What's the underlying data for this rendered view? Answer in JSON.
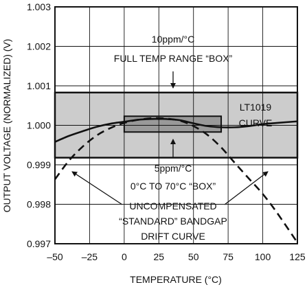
{
  "chart_data": {
    "type": "line",
    "xlabel": "TEMPERATURE (°C)",
    "ylabel": "OUTPUT VOLTAGE (NORMALIZED) (V)",
    "xlim": [
      -50,
      125
    ],
    "ylim": [
      0.997,
      1.003
    ],
    "x_ticks": [
      "–50",
      "–25",
      "0",
      "25",
      "50",
      "75",
      "100",
      "125"
    ],
    "y_ticks": [
      "0.997",
      "0.998",
      "0.999",
      "1.000",
      "1.001",
      "1.002",
      "1.003"
    ],
    "grid": true,
    "series": [
      {
        "name": "LT1019 CURVE",
        "style": "solid",
        "x": [
          -50,
          -40,
          -30,
          -20,
          -10,
          0,
          10,
          20,
          25,
          30,
          40,
          50,
          60,
          70,
          80,
          90,
          100,
          110,
          125
        ],
        "y": [
          0.99958,
          0.99973,
          0.99985,
          0.99996,
          1.00004,
          1.00009,
          1.00014,
          1.00016,
          1.00016,
          1.00016,
          1.00013,
          1.00005,
          0.99998,
          0.99995,
          0.99995,
          0.99998,
          1.00003,
          1.00006,
          1.0001
        ]
      },
      {
        "name": "UNCOMPENSATED “STANDARD” BANDGAP DRIFT CURVE",
        "style": "dashed",
        "x": [
          -50,
          -40,
          -30,
          -20,
          -10,
          0,
          10,
          20,
          25,
          30,
          40,
          50,
          60,
          70,
          80,
          90,
          100,
          110,
          125
        ],
        "y": [
          0.99863,
          0.9991,
          0.99946,
          0.99974,
          0.99993,
          1.00006,
          1.00014,
          1.00018,
          1.00018,
          1.00017,
          1.00012,
          0.99998,
          0.99976,
          0.99944,
          0.99904,
          0.99865,
          0.99826,
          0.9978,
          0.99703
        ]
      }
    ],
    "boxes": [
      {
        "name": "10ppm/°C FULL TEMP RANGE BOX",
        "x": [
          -50,
          125
        ],
        "y": [
          0.99918,
          1.00083
        ],
        "fill": "#cccccc"
      },
      {
        "name": "5ppm/°C 0°C TO 70°C BOX",
        "x": [
          0,
          70
        ],
        "y": [
          0.99983,
          1.00023
        ],
        "fill": "#999999"
      }
    ],
    "annotations": [
      "10ppm/°C",
      "FULL TEMP RANGE “BOX”",
      "LT1019",
      "CURVE",
      "5ppm/°C",
      "0°C TO 70°C “BOX”",
      "UNCOMPENSATED",
      "“STANDARD” BANDGAP",
      "DRIFT CURVE"
    ]
  }
}
